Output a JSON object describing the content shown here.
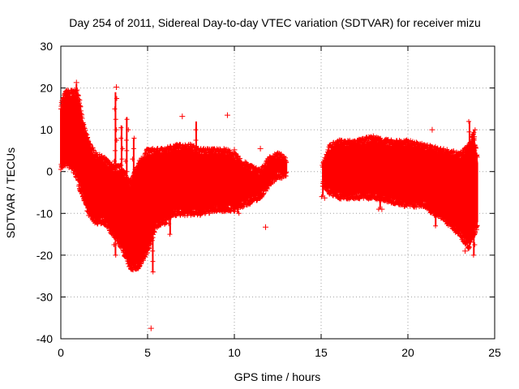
{
  "chart_data": {
    "type": "scatter",
    "title": "Day 254 of 2011, Sidereal Day-to-day VTEC variation (SDTVAR) for receiver mizu",
    "xlabel": "GPS time / hours",
    "ylabel": "SDTVAR / TECUs",
    "xlim": [
      0,
      25
    ],
    "ylim": [
      -40,
      30
    ],
    "xticks": [
      0,
      5,
      10,
      15,
      20,
      25
    ],
    "yticks": [
      -40,
      -30,
      -20,
      -10,
      0,
      10,
      20,
      30
    ],
    "grid": true,
    "marker": "+",
    "series_color": "#ff0000",
    "series": [
      {
        "name": "SDTVAR",
        "segment_1": {
          "x_range": [
            0.0,
            13.0
          ],
          "upper_envelope": [
            [
              0.0,
              15
            ],
            [
              0.3,
              18
            ],
            [
              0.6,
              18
            ],
            [
              0.9,
              18
            ],
            [
              1.1,
              16
            ],
            [
              1.3,
              10
            ],
            [
              1.6,
              6
            ],
            [
              2.0,
              3
            ],
            [
              2.5,
              2
            ],
            [
              3.0,
              0
            ],
            [
              3.5,
              0
            ],
            [
              4.0,
              -4
            ],
            [
              4.5,
              1
            ],
            [
              5.0,
              4
            ],
            [
              5.5,
              4
            ],
            [
              6.0,
              4
            ],
            [
              6.5,
              5
            ],
            [
              7.0,
              5
            ],
            [
              7.5,
              5
            ],
            [
              8.0,
              4
            ],
            [
              9.0,
              4
            ],
            [
              9.5,
              4
            ],
            [
              10.0,
              3
            ],
            [
              10.5,
              1
            ],
            [
              11.0,
              0
            ],
            [
              11.5,
              -1
            ],
            [
              12.0,
              2
            ],
            [
              12.5,
              3
            ],
            [
              13.0,
              2
            ]
          ],
          "lower_envelope": [
            [
              0.0,
              2
            ],
            [
              0.3,
              3
            ],
            [
              0.6,
              2
            ],
            [
              0.9,
              0
            ],
            [
              1.1,
              -3
            ],
            [
              1.3,
              -5
            ],
            [
              1.6,
              -9
            ],
            [
              2.0,
              -11
            ],
            [
              2.5,
              -11
            ],
            [
              3.0,
              -14
            ],
            [
              3.5,
              -17
            ],
            [
              4.0,
              -22
            ],
            [
              4.5,
              -22
            ],
            [
              5.0,
              -18
            ],
            [
              5.5,
              -12
            ],
            [
              6.0,
              -11
            ],
            [
              6.5,
              -9
            ],
            [
              7.0,
              -9
            ],
            [
              7.5,
              -9
            ],
            [
              8.0,
              -9
            ],
            [
              9.0,
              -8
            ],
            [
              9.5,
              -8
            ],
            [
              10.0,
              -8
            ],
            [
              10.5,
              -7
            ],
            [
              11.0,
              -6
            ],
            [
              11.5,
              -5
            ],
            [
              12.0,
              -2
            ],
            [
              12.5,
              0
            ],
            [
              13.0,
              0
            ]
          ]
        },
        "segment_2": {
          "x_range": [
            15.1,
            24.0
          ],
          "upper_envelope": [
            [
              15.1,
              1
            ],
            [
              15.5,
              5
            ],
            [
              16.0,
              6
            ],
            [
              17.0,
              6
            ],
            [
              18.0,
              7
            ],
            [
              19.0,
              6
            ],
            [
              20.0,
              6
            ],
            [
              21.0,
              5
            ],
            [
              22.0,
              4
            ],
            [
              23.0,
              3
            ],
            [
              23.5,
              5
            ],
            [
              23.8,
              8
            ],
            [
              24.0,
              2
            ]
          ],
          "lower_envelope": [
            [
              15.1,
              -2
            ],
            [
              15.5,
              -4
            ],
            [
              16.0,
              -5
            ],
            [
              17.0,
              -5
            ],
            [
              18.0,
              -5
            ],
            [
              19.0,
              -6
            ],
            [
              20.0,
              -7
            ],
            [
              21.0,
              -7
            ],
            [
              21.5,
              -9
            ],
            [
              22.0,
              -10
            ],
            [
              23.0,
              -14
            ],
            [
              23.5,
              -17
            ],
            [
              24.0,
              -12
            ]
          ]
        },
        "spikes": [
          {
            "x": 0.9,
            "min": 12,
            "max": 21
          },
          {
            "x": 3.15,
            "min": -20,
            "max": 19
          },
          {
            "x": 3.5,
            "min": -17,
            "max": 11
          },
          {
            "x": 3.8,
            "min": -15,
            "max": 13
          },
          {
            "x": 4.2,
            "min": -22,
            "max": 8
          },
          {
            "x": 5.3,
            "min": -24,
            "max": 3
          },
          {
            "x": 6.3,
            "min": -15,
            "max": 4
          },
          {
            "x": 7.8,
            "min": -10,
            "max": 12
          },
          {
            "x": 10.2,
            "min": -10,
            "max": 4
          },
          {
            "x": 15.1,
            "min": -6,
            "max": 2
          },
          {
            "x": 18.4,
            "min": -9,
            "max": 6
          },
          {
            "x": 21.6,
            "min": -13,
            "max": 2
          },
          {
            "x": 23.55,
            "min": -18,
            "max": 12
          },
          {
            "x": 23.8,
            "min": -20,
            "max": 10
          }
        ],
        "outliers": [
          [
            5.2,
            -37.5
          ],
          [
            7.0,
            13.2
          ],
          [
            9.6,
            13.5
          ],
          [
            11.5,
            5.5
          ],
          [
            11.8,
            -13.3
          ],
          [
            10.0,
            5.2
          ],
          [
            21.4,
            10.0
          ],
          [
            23.3,
            -19.0
          ],
          [
            3.2,
            20.2
          ],
          [
            0.9,
            21.3
          ],
          [
            15.2,
            -6.3
          ],
          [
            18.5,
            -9.0
          ]
        ]
      }
    ]
  }
}
